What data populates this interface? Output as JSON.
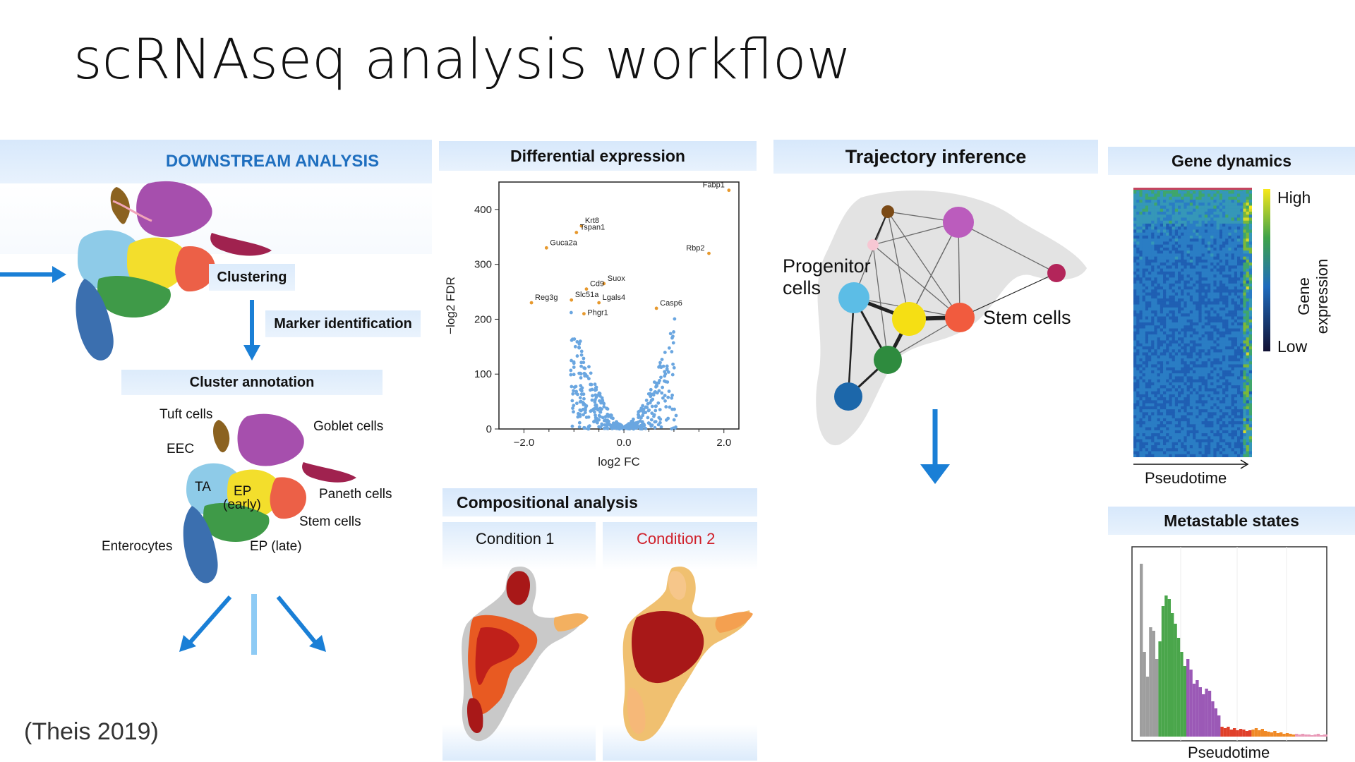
{
  "slide": {
    "title": "scRNAseq analysis workflow",
    "citation": "(Theis 2019)"
  },
  "downstream": {
    "header": "DOWNSTREAM ANALYSIS",
    "clustering": "Clustering",
    "marker_identification": "Marker identification",
    "cluster_annotation": "Cluster annotation",
    "cell_labels": [
      "Tuft cells",
      "EEC",
      "Goblet cells",
      "TA",
      "EP",
      "(early)",
      "Paneth cells",
      "Stem cells",
      "Enterocytes",
      "EP (late)"
    ]
  },
  "differential": {
    "header": "Differential expression",
    "xlabel": "log2 FC",
    "ylabel": "−log2 FDR",
    "xticks": [
      "−2.0",
      "0.0",
      "2.0"
    ],
    "yticks": [
      "0",
      "100",
      "200",
      "300",
      "400"
    ],
    "genes": [
      "Fabp1",
      "Krt8",
      "Tspan1",
      "Guca2a",
      "Rbp2",
      "Suox",
      "Cd9",
      "Reg3g",
      "Slc51a",
      "Lgals4",
      "Casp6",
      "Phgr1"
    ]
  },
  "chart_data": {
    "type": "scatter",
    "title": "Differential expression",
    "xlabel": "log2 FC",
    "ylabel": "−log2 FDR",
    "xlim": [
      -2.5,
      2.3
    ],
    "ylim": [
      0,
      450
    ],
    "labeled_points": [
      {
        "label": "Fabp1",
        "x": 2.1,
        "y": 435
      },
      {
        "label": "Krt8",
        "x": -0.85,
        "y": 370
      },
      {
        "label": "Tspan1",
        "x": -0.95,
        "y": 358
      },
      {
        "label": "Guca2a",
        "x": -1.55,
        "y": 330
      },
      {
        "label": "Rbp2",
        "x": 1.7,
        "y": 320
      },
      {
        "label": "Suox",
        "x": -0.4,
        "y": 265
      },
      {
        "label": "Cd9",
        "x": -0.75,
        "y": 255
      },
      {
        "label": "Reg3g",
        "x": -1.85,
        "y": 230
      },
      {
        "label": "Slc51a",
        "x": -1.05,
        "y": 235
      },
      {
        "label": "Lgals4",
        "x": -0.5,
        "y": 230
      },
      {
        "label": "Casp6",
        "x": 0.65,
        "y": 220
      },
      {
        "label": "Phgr1",
        "x": -0.8,
        "y": 210
      }
    ]
  },
  "compositional": {
    "header": "Compositional analysis",
    "condition1": "Condition 1",
    "condition2": "Condition 2",
    "condition2_color": "#d0202a"
  },
  "trajectory": {
    "header": "Trajectory inference",
    "progenitor": [
      "Progenitor",
      "cells"
    ],
    "stem": "Stem cells"
  },
  "gene_dynamics": {
    "header": "Gene dynamics",
    "high": "High",
    "low": "Low",
    "axis_title": [
      "Gene",
      "expression"
    ],
    "xlabel": "Pseudotime"
  },
  "metastable": {
    "header": "Metastable states",
    "xlabel": "Pseudotime"
  },
  "colors": {
    "accent_blue": "#1a7fd6",
    "header_text_blue": "#1f6fbf",
    "band_light": "#dbeafb"
  }
}
